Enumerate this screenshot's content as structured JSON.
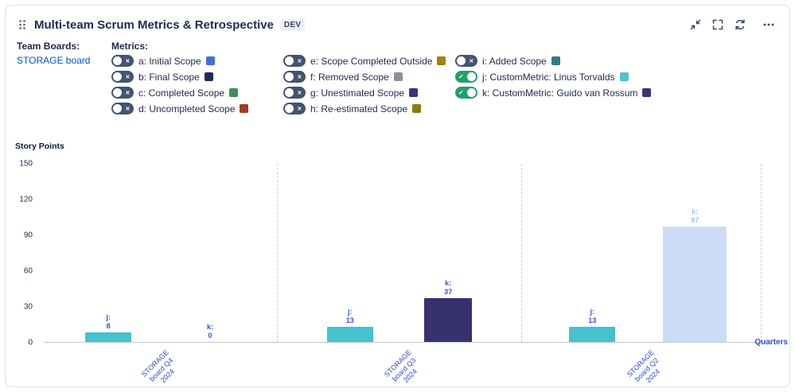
{
  "header": {
    "title": "Multi-team Scrum Metrics & Retrospective",
    "badge": "DEV"
  },
  "team_boards": {
    "label": "Team Boards:",
    "board_link": "STORAGE board"
  },
  "metrics": {
    "label": "Metrics:",
    "columns": [
      [
        {
          "key": "a",
          "label": "a: Initial Scope",
          "color": "#4170d8",
          "enabled": false
        },
        {
          "key": "b",
          "label": "b: Final Scope",
          "color": "#1f2c56",
          "enabled": false
        },
        {
          "key": "c",
          "label": "c: Completed Scope",
          "color": "#3f8f5f",
          "enabled": false
        },
        {
          "key": "d",
          "label": "d: Uncompleted Scope",
          "color": "#9e3b26",
          "enabled": false
        }
      ],
      [
        {
          "key": "e",
          "label": "e: Scope Completed Outside",
          "color": "#a08216",
          "enabled": false
        },
        {
          "key": "f",
          "label": "f: Removed Scope",
          "color": "#8a8f98",
          "enabled": false
        },
        {
          "key": "g",
          "label": "g: Unestimated Scope",
          "color": "#3a3578",
          "enabled": false
        },
        {
          "key": "h",
          "label": "h: Re-estimated Scope",
          "color": "#8a7a12",
          "enabled": false
        }
      ],
      [
        {
          "key": "i",
          "label": "i: Added Scope",
          "color": "#2e7e8a",
          "enabled": false
        },
        {
          "key": "j",
          "label": "j: CustomMetric: Linus Torvalds",
          "color": "#4cc5ce",
          "enabled": true
        },
        {
          "key": "k",
          "label": "k: CustomMetric: Guido van Rossum",
          "color": "#3a3570",
          "enabled": true
        }
      ]
    ]
  },
  "chart_data": {
    "type": "bar",
    "title": "",
    "ylabel": "Story Points",
    "xlabel": "Quarters",
    "ylim": [
      0,
      150
    ],
    "yticks": [
      0,
      30,
      60,
      90,
      120,
      150
    ],
    "grid": "dashed-vertical-separators",
    "legend_position": "none",
    "categories": [
      "STORAGE board Q4 2024",
      "STORAGE board Q3 2024",
      "STORAGE board Q2 2024"
    ],
    "series": [
      {
        "key": "j",
        "name": "CustomMetric: Linus Torvalds",
        "color": "#45c2cd",
        "label_color": "#3056d6",
        "values": [
          8,
          13,
          13
        ]
      },
      {
        "key": "k",
        "name": "CustomMetric: Guido van Rossum",
        "color": "#37316e",
        "label_color": "#3056d6",
        "values": [
          0,
          37,
          97
        ],
        "point_colors": [
          "#37316e",
          "#37316e",
          "#ccdcf7"
        ],
        "point_label_colors": [
          "#3056d6",
          "#3056d6",
          "#a3bdec"
        ]
      }
    ]
  }
}
